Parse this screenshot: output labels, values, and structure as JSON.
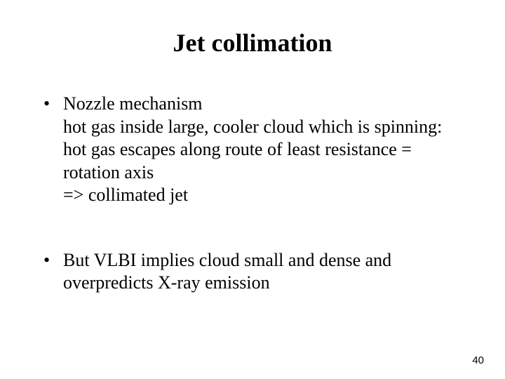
{
  "title": "Jet collimation",
  "bullets": [
    "Nozzle mechanism\nhot gas inside large, cooler cloud which is spinning: hot gas escapes along route of least resistance = rotation axis\n=> collimated jet",
    "But VLBI implies cloud small and dense and overpredicts X-ray emission"
  ],
  "page_number": "40",
  "title_fontsize": 36,
  "body_fontsize": 26,
  "background_color": "#ffffff",
  "text_color": "#000000"
}
